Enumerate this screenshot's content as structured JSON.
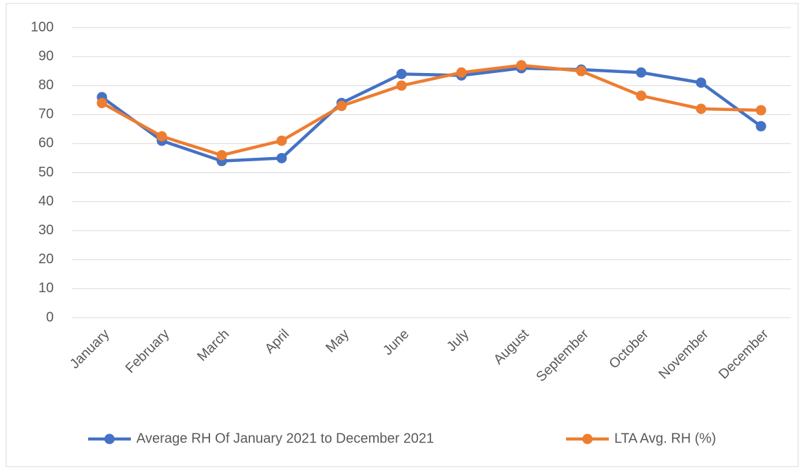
{
  "chart_data": {
    "type": "line",
    "categories": [
      "January",
      "February",
      "March",
      "April",
      "May",
      "June",
      "July",
      "August",
      "September",
      "October",
      "November",
      "December"
    ],
    "series": [
      {
        "name": "Average RH Of January 2021 to December 2021",
        "color": "#4472c4",
        "values": [
          76,
          61,
          54,
          55,
          74,
          84,
          83.5,
          86,
          85.5,
          84.5,
          81,
          66
        ]
      },
      {
        "name": "LTA Avg. RH (%)",
        "color": "#ed7d31",
        "values": [
          74,
          62.5,
          56,
          61,
          73,
          80,
          84.5,
          87,
          85,
          76.5,
          72,
          71.5
        ]
      }
    ],
    "ylim": [
      0,
      100
    ],
    "yticks": [
      0,
      10,
      20,
      30,
      40,
      50,
      60,
      70,
      80,
      90,
      100
    ],
    "grid": true,
    "legend": "bottom"
  }
}
